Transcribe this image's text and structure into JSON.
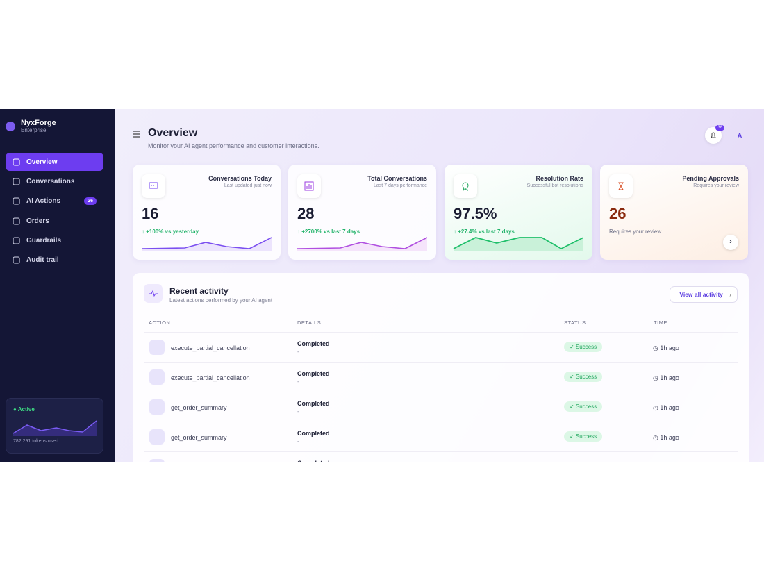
{
  "brand": {
    "name": "NyxForge",
    "plan": "Enterprise"
  },
  "nav": [
    {
      "label": "Overview"
    },
    {
      "label": "Conversations"
    },
    {
      "label": "AI Actions",
      "badge": 26
    },
    {
      "label": "Orders"
    },
    {
      "label": "Guardrails"
    },
    {
      "label": "Audit trail"
    }
  ],
  "usage": {
    "status": "Active",
    "tokens": "782,291 tokens used"
  },
  "header": {
    "title": "Overview",
    "subtitle": "Monitor your AI agent performance and customer interactions.",
    "notifications": 38,
    "avatar": "A"
  },
  "cards": [
    {
      "title": "Conversations Today",
      "subtitle": "Last updated just now",
      "value": "16",
      "change": "+100% vs yesterday"
    },
    {
      "title": "Total Conversations",
      "subtitle": "Last 7 days performance",
      "value": "28",
      "change": "+2700% vs last 7 days"
    },
    {
      "title": "Resolution Rate",
      "subtitle": "Successful bot resolutions",
      "value": "97.5%",
      "change": "+27.4% vs last 7 days"
    },
    {
      "title": "Pending Approvals",
      "subtitle": "Requires your review",
      "value": "26",
      "note": "Requires your review"
    }
  ],
  "activity": {
    "title": "Recent activity",
    "subtitle": "Latest actions performed by your AI agent",
    "link": "View all activity",
    "columns": [
      "ACTION",
      "DETAILS",
      "STATUS",
      "TIME"
    ],
    "rows": [
      {
        "action": "execute_partial_cancellation",
        "details": "Completed",
        "detail_sub": "-",
        "status": "Success",
        "time": "1h ago"
      },
      {
        "action": "execute_partial_cancellation",
        "details": "Completed",
        "detail_sub": "-",
        "status": "Success",
        "time": "1h ago"
      },
      {
        "action": "get_order_summary",
        "details": "Completed",
        "detail_sub": "-",
        "status": "Success",
        "time": "1h ago"
      },
      {
        "action": "get_order_summary",
        "details": "Completed",
        "detail_sub": "-",
        "status": "Success",
        "time": "1h ago"
      },
      {
        "details": "Completed"
      }
    ]
  }
}
